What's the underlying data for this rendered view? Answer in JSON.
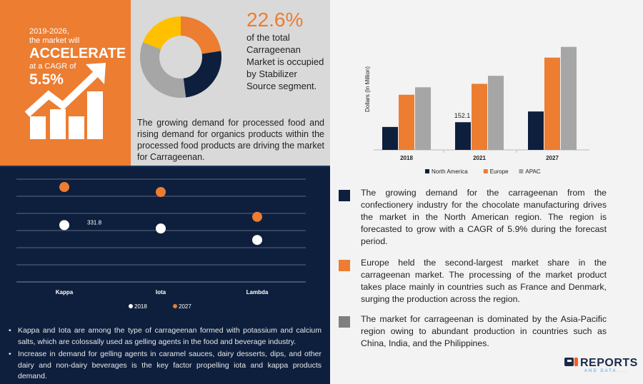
{
  "highlight": {
    "years": "2019-2026,",
    "line2": "the market will",
    "headline": "ACCELERATE",
    "line4": "at a CAGR of",
    "cagr": "5.5%"
  },
  "stabilizer": {
    "share": "22.6%",
    "text": "of the total Carrageenan Market is occupied by Stabilizer Source segment.",
    "donut": [
      {
        "value": 22.6,
        "color": "#ec7d31"
      },
      {
        "value": 25.4,
        "color": "#0e1f3d"
      },
      {
        "value": 33,
        "color": "#a6a6a6"
      },
      {
        "value": 19,
        "color": "#ffc000"
      }
    ]
  },
  "driver_text": "The growing demand for processed food and rising demand for organics products within the processed food products are driving the market for Carrageenan.",
  "chart_data": [
    {
      "type": "bar",
      "ylabel": "Dollars (In Million)",
      "categories": [
        "2018",
        "2021",
        "2027"
      ],
      "series": [
        {
          "name": "North America",
          "color": "#0e1f3d",
          "values": [
            126,
            152.1,
            211
          ]
        },
        {
          "name": "Europe",
          "color": "#ec7d31",
          "values": [
            303,
            363,
            507
          ]
        },
        {
          "name": "APAC",
          "color": "#a6a6a6",
          "values": [
            344,
            407,
            566
          ]
        }
      ],
      "data_labels": [
        {
          "series": 0,
          "category": 1,
          "text": "152.1"
        }
      ],
      "ylim": [
        0,
        600
      ],
      "legend": "bottom"
    },
    {
      "type": "scatter",
      "categories": [
        "Kappa",
        "Iota",
        "Lambda"
      ],
      "series": [
        {
          "name": "2018",
          "color": "#ffffff",
          "values": [
            331.8,
            312,
            245
          ]
        },
        {
          "name": "2027",
          "color": "#ec7d31",
          "values": [
            554,
            525,
            380
          ]
        }
      ],
      "data_labels": [
        {
          "series": 0,
          "category": 0,
          "text": "331.8"
        }
      ],
      "ylim": [
        0,
        600
      ],
      "grid": true,
      "legend": "bottom"
    }
  ],
  "bullets": [
    "Kappa and Iota are among the type of carrageenan formed with potassium and calcium salts, which are colossally used as gelling agents in the food and beverage industry.",
    "Increase in demand for gelling agents in caramel sauces, dairy desserts, dips, and other dairy and non-dairy beverages is the key factor propelling iota and kappa products demand."
  ],
  "notes": [
    {
      "color": "#0e1f3d",
      "text": "The growing demand for the carrageenan from the confectionery industry for the chocolate manufacturing drives the market in the North American region. The region is forecasted to grow with a CAGR of 5.9% during the forecast period."
    },
    {
      "color": "#ec7d31",
      "text": "Europe held the second-largest market share in the carrageenan market. The processing of the market product takes place mainly in countries such as France and Denmark, surging the production across the region."
    },
    {
      "color": "#7f7f7f",
      "text": "The market for carrageenan is dominated by the Asia-Pacific region owing to abundant production in countries such as China, India, and the Philippines."
    }
  ],
  "logo": {
    "name": "REPORTS",
    "sub": "AND DATA...."
  }
}
